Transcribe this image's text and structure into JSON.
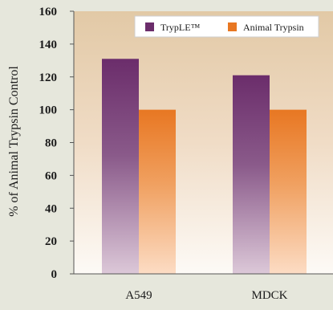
{
  "chart_data": {
    "type": "bar",
    "title": "",
    "xlabel": "",
    "ylabel": "% of Animal Trypsin Control",
    "ylim": [
      0,
      160
    ],
    "yticks": [
      0,
      20,
      40,
      60,
      80,
      100,
      120,
      140,
      160
    ],
    "grid": false,
    "legend_position": "top-right",
    "categories": [
      "A549",
      "MDCK"
    ],
    "series": [
      {
        "name": "TrypLE™",
        "values": [
          131,
          121
        ],
        "color": "#6b2d6b"
      },
      {
        "name": "Animal Trypsin",
        "values": [
          100,
          100
        ],
        "color": "#e87722"
      }
    ]
  }
}
